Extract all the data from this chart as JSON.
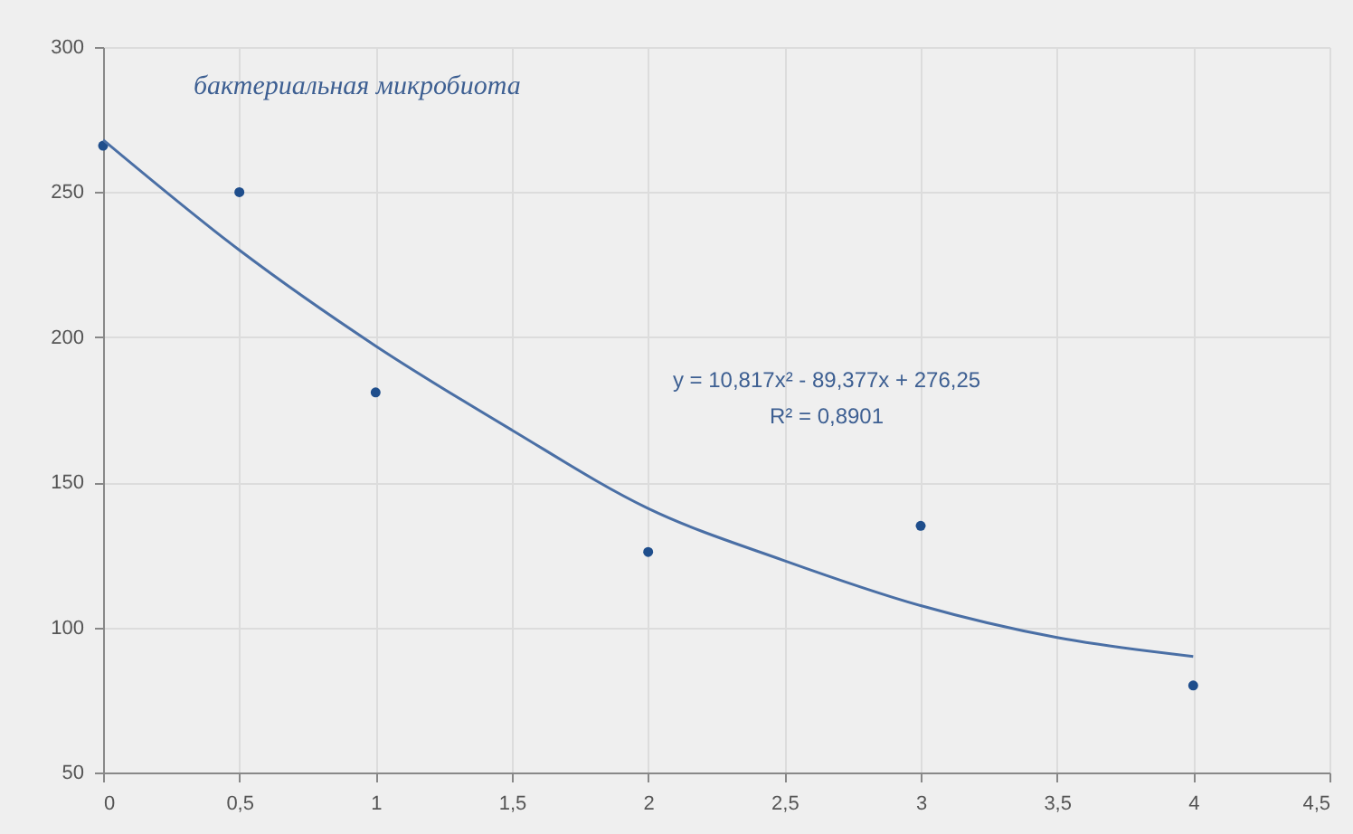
{
  "chart_data": {
    "type": "scatter",
    "annotations": [
      "бактериальная микробиота",
      "y = 10,817x² - 89,377x + 276,25",
      "R² = 0,8901"
    ],
    "series": [
      {
        "color": "#1f4e8c",
        "x": [
          0,
          0.5,
          1,
          2,
          3,
          4
        ],
        "values": [
          266,
          250,
          181,
          126,
          135,
          80
        ]
      },
      {
        "type": "line",
        "marker": "none",
        "color": "#4a6fa5",
        "x": [
          0,
          0.5,
          1,
          1.5,
          2,
          2.5,
          3,
          3.5,
          4
        ],
        "values": [
          268,
          230,
          197,
          168,
          141,
          123,
          107.5,
          96.5,
          90
        ]
      }
    ],
    "xlim": [
      0,
      4.5
    ],
    "xticks": [
      0,
      {
        "value": 0.5,
        "label": "0,5"
      },
      1,
      {
        "value": 1.5,
        "label": "1,5"
      },
      2,
      {
        "value": 2.5,
        "label": "2,5"
      },
      3,
      {
        "value": 3.5,
        "label": "3,5"
      },
      4,
      {
        "value": 4.5,
        "label": "4,5"
      }
    ],
    "ylim": [
      50,
      300
    ],
    "yticks": [
      50,
      100,
      150,
      200,
      250,
      300
    ],
    "grid": true,
    "marker": "circle"
  }
}
